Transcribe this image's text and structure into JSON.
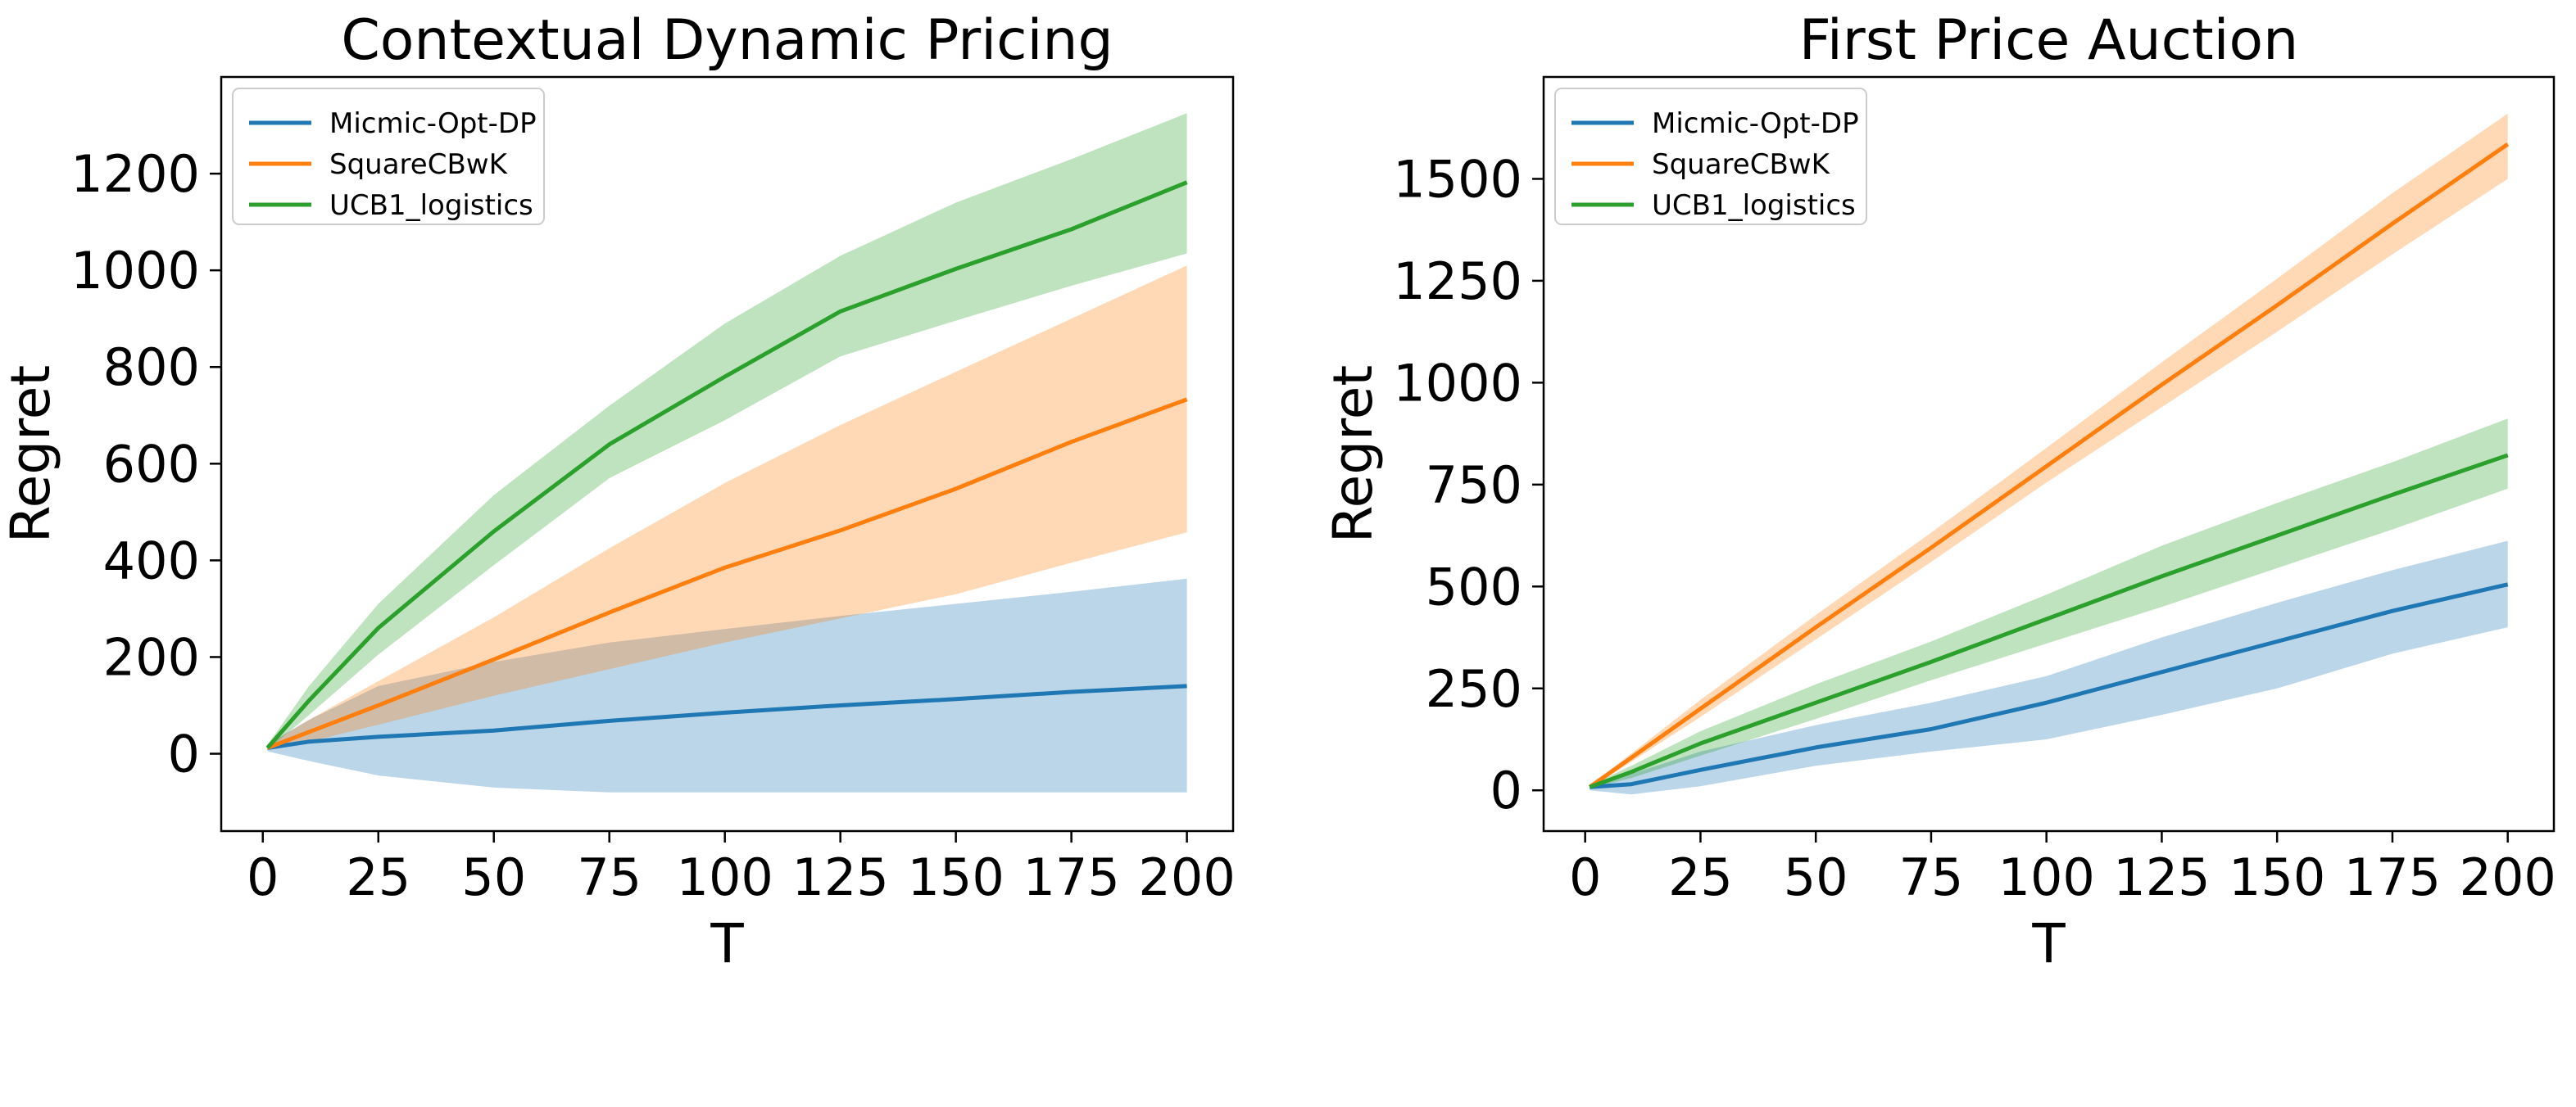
{
  "chart_data": [
    {
      "type": "line",
      "title": "Contextual Dynamic Pricing",
      "xlabel": "T",
      "ylabel": "Regret",
      "xlim": [
        -9,
        210
      ],
      "ylim": [
        -160,
        1400
      ],
      "xticks": [
        0,
        25,
        50,
        75,
        100,
        125,
        150,
        175,
        200
      ],
      "xtick_labels": [
        "0",
        "25",
        "50",
        "75",
        "100",
        "125",
        "150",
        "175",
        "200"
      ],
      "yticks": [
        0,
        200,
        400,
        600,
        800,
        1000,
        1200
      ],
      "ytick_labels": [
        "0",
        "200",
        "400",
        "600",
        "800",
        "1000",
        "1200"
      ],
      "grid": false,
      "legend_position": "top-left",
      "series": [
        {
          "name": "Micmic-Opt-DP",
          "color": "#1f77b4",
          "x": [
            1,
            10,
            25,
            50,
            75,
            100,
            125,
            150,
            175,
            200
          ],
          "y": [
            12,
            25,
            35,
            48,
            68,
            85,
            100,
            113,
            128,
            140
          ],
          "lower": [
            5,
            -15,
            -45,
            -70,
            -80,
            -80,
            -80,
            -80,
            -80,
            -80
          ],
          "upper": [
            20,
            70,
            140,
            190,
            230,
            258,
            285,
            310,
            335,
            362
          ]
        },
        {
          "name": "SquareCBwK",
          "color": "#ff7f0e",
          "x": [
            1,
            10,
            25,
            50,
            75,
            100,
            125,
            150,
            175,
            200
          ],
          "y": [
            12,
            45,
            100,
            195,
            292,
            385,
            462,
            548,
            645,
            733
          ],
          "lower": [
            8,
            25,
            60,
            120,
            175,
            230,
            280,
            330,
            395,
            458
          ],
          "upper": [
            18,
            70,
            150,
            282,
            425,
            560,
            680,
            790,
            900,
            1010
          ]
        },
        {
          "name": "UCB1_logistics",
          "color": "#2ca02c",
          "x": [
            1,
            10,
            25,
            50,
            75,
            100,
            125,
            150,
            175,
            200
          ],
          "y": [
            12,
            110,
            260,
            460,
            640,
            780,
            915,
            1003,
            1085,
            1182
          ],
          "lower": [
            8,
            80,
            205,
            390,
            570,
            690,
            822,
            896,
            968,
            1035
          ],
          "upper": [
            18,
            140,
            310,
            535,
            720,
            890,
            1030,
            1140,
            1230,
            1325
          ]
        }
      ]
    },
    {
      "type": "line",
      "title": "First Price Auction",
      "xlabel": "T",
      "ylabel": "Regret",
      "xlim": [
        -9,
        210
      ],
      "ylim": [
        -100,
        1750
      ],
      "xticks": [
        0,
        25,
        50,
        75,
        100,
        125,
        150,
        175,
        200
      ],
      "xtick_labels": [
        "0",
        "25",
        "50",
        "75",
        "100",
        "125",
        "150",
        "175",
        "200"
      ],
      "yticks": [
        0,
        250,
        500,
        750,
        1000,
        1250,
        1500
      ],
      "ytick_labels": [
        "0",
        "250",
        "500",
        "750",
        "1000",
        "1250",
        "1500"
      ],
      "grid": false,
      "legend_position": "top-left",
      "series": [
        {
          "name": "Micmic-Opt-DP",
          "color": "#1f77b4",
          "x": [
            1,
            10,
            25,
            50,
            75,
            100,
            125,
            150,
            175,
            200
          ],
          "y": [
            8,
            15,
            50,
            105,
            150,
            215,
            290,
            365,
            440,
            505
          ],
          "lower": [
            0,
            -10,
            10,
            60,
            95,
            125,
            185,
            250,
            335,
            400
          ],
          "upper": [
            12,
            40,
            95,
            160,
            215,
            280,
            375,
            460,
            540,
            612
          ]
        },
        {
          "name": "SquareCBwK",
          "color": "#ff7f0e",
          "x": [
            1,
            10,
            25,
            50,
            75,
            100,
            125,
            150,
            175,
            200
          ],
          "y": [
            8,
            80,
            200,
            400,
            595,
            795,
            995,
            1190,
            1390,
            1585
          ],
          "lower": [
            5,
            70,
            180,
            370,
            560,
            755,
            940,
            1125,
            1315,
            1500
          ],
          "upper": [
            12,
            90,
            222,
            430,
            632,
            840,
            1050,
            1255,
            1465,
            1660
          ]
        },
        {
          "name": "UCB1_logistics",
          "color": "#2ca02c",
          "x": [
            1,
            10,
            25,
            50,
            75,
            100,
            125,
            150,
            175,
            200
          ],
          "y": [
            8,
            45,
            115,
            215,
            315,
            420,
            525,
            625,
            725,
            822
          ],
          "lower": [
            5,
            30,
            85,
            175,
            270,
            360,
            450,
            545,
            640,
            740
          ],
          "upper": [
            12,
            60,
            145,
            260,
            365,
            480,
            600,
            705,
            805,
            912
          ]
        }
      ]
    }
  ]
}
